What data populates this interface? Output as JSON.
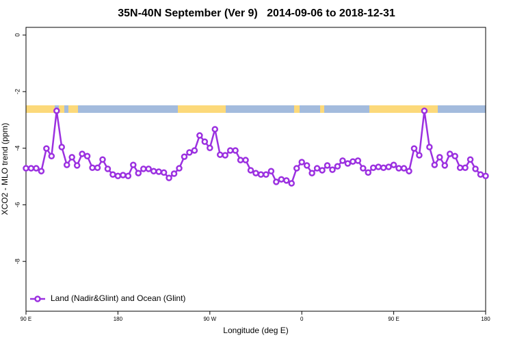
{
  "chart_data": {
    "type": "line",
    "title": "35N-40N September (Ver 9)   2014-09-06 to 2018-12-31",
    "x_label": "Longitude (deg E)",
    "y_label": "XCO2 - MLO trend (ppm)",
    "x": [
      90,
      95,
      100,
      105,
      110,
      115,
      120,
      125,
      130,
      135,
      140,
      145,
      150,
      155,
      160,
      165,
      170,
      175,
      180,
      185,
      190,
      195,
      200,
      205,
      210,
      215,
      220,
      225,
      230,
      235,
      240,
      245,
      250,
      255,
      260,
      265,
      270,
      275,
      280,
      285,
      290,
      295,
      300,
      305,
      310,
      315,
      320,
      325,
      330,
      335,
      340,
      345,
      350,
      355,
      360,
      365,
      370,
      375,
      380,
      385,
      390,
      395,
      400,
      405,
      410,
      415,
      420,
      425,
      430,
      435,
      440,
      445,
      450,
      455,
      460,
      465,
      470,
      475,
      480,
      485,
      490,
      495,
      500,
      505,
      510,
      515,
      520,
      525,
      530,
      535,
      540
    ],
    "series": [
      {
        "name": "Land (Nadir&Glint) and Ocean (Glint)",
        "color": "#9b30e0",
        "values": [
          -4.71,
          -4.71,
          -4.71,
          -4.81,
          -4.01,
          -4.28,
          -2.68,
          -3.96,
          -4.59,
          -4.32,
          -4.61,
          -4.2,
          -4.28,
          -4.69,
          -4.69,
          -4.4,
          -4.73,
          -4.93,
          -4.98,
          -4.95,
          -4.98,
          -4.59,
          -4.88,
          -4.73,
          -4.73,
          -4.81,
          -4.83,
          -4.86,
          -5.05,
          -4.9,
          -4.71,
          -4.3,
          -4.15,
          -4.08,
          -3.55,
          -3.77,
          -3.99,
          -3.33,
          -4.23,
          -4.25,
          -4.08,
          -4.08,
          -4.42,
          -4.42,
          -4.78,
          -4.88,
          -4.93,
          -4.93,
          -4.81,
          -5.19,
          -5.1,
          -5.14,
          -5.24,
          -4.71,
          -4.49,
          -4.61,
          -4.88,
          -4.71,
          -4.78,
          -4.61,
          -4.76,
          -4.64,
          -4.44,
          -4.54,
          -4.47,
          -4.44,
          -4.71,
          -4.86,
          -4.69,
          -4.66,
          -4.69,
          -4.66,
          -4.59,
          -4.71,
          -4.71,
          -4.81,
          -4.01,
          -4.25,
          -2.68,
          -3.96,
          -4.59,
          -4.32,
          -4.61,
          -4.2,
          -4.28,
          -4.69,
          -4.69,
          -4.4,
          -4.73,
          -4.93,
          -4.98
        ]
      }
    ],
    "xlim": [
      90,
      540
    ],
    "xticks": [
      {
        "value": 90,
        "label": "90 E"
      },
      {
        "value": 180,
        "label": "180"
      },
      {
        "value": 270,
        "label": "90 W"
      },
      {
        "value": 360,
        "label": "0"
      },
      {
        "value": 450,
        "label": "90 E"
      },
      {
        "value": 540,
        "label": "180"
      }
    ],
    "ylim": [
      -9.76,
      0.27
    ],
    "yticks": [
      -8,
      -6,
      -4,
      -2,
      0
    ],
    "legend": "lower left"
  }
}
